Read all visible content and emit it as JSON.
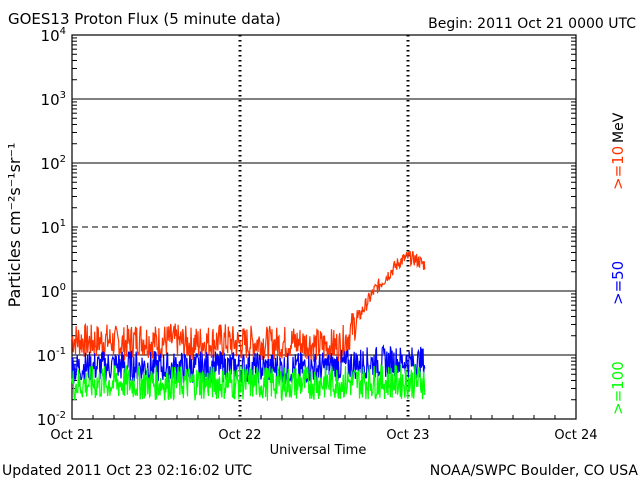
{
  "header": {
    "title": "GOES13 Proton Flux (5 minute data)",
    "begin": "Begin: 2011 Oct 21 0000 UTC"
  },
  "footer": {
    "updated": "Updated 2011 Oct 23 02:16:02 UTC",
    "credit": "NOAA/SWPC Boulder, CO USA"
  },
  "chart_data": {
    "type": "line",
    "title": "GOES13 Proton Flux (5 minute data)",
    "xlabel": "Universal Time",
    "ylabel": "Particles cm⁻²s⁻¹sr⁻¹",
    "yscale": "log",
    "ylim": [
      0.01,
      10000
    ],
    "xlim_days": [
      0,
      3
    ],
    "x_ticks": [
      {
        "day": 0,
        "label": "Oct 21"
      },
      {
        "day": 1,
        "label": "Oct 22"
      },
      {
        "day": 2,
        "label": "Oct 23"
      },
      {
        "day": 3,
        "label": "Oct 24"
      }
    ],
    "y_ticks": [
      {
        "exp": -2,
        "mant": "10",
        "sup": "-2"
      },
      {
        "exp": -1,
        "mant": "10",
        "sup": "-1"
      },
      {
        "exp": 0,
        "mant": "10",
        "sup": "0"
      },
      {
        "exp": 1,
        "mant": "10",
        "sup": "1"
      },
      {
        "exp": 2,
        "mant": "10",
        "sup": "2"
      },
      {
        "exp": 3,
        "mant": "10",
        "sup": "3"
      },
      {
        "exp": 4,
        "mant": "10",
        "sup": "4"
      }
    ],
    "threshold_line": {
      "value": 10,
      "style": "dashed"
    },
    "legend_unit": "MeV",
    "series": [
      {
        "name": ">=10",
        "color": "#ff3300",
        "points": [
          [
            0,
            0.17
          ],
          [
            0.1,
            0.15
          ],
          [
            0.2,
            0.16
          ],
          [
            0.3,
            0.14
          ],
          [
            0.4,
            0.17
          ],
          [
            0.5,
            0.15
          ],
          [
            0.6,
            0.16
          ],
          [
            0.7,
            0.14
          ],
          [
            0.8,
            0.15
          ],
          [
            0.9,
            0.16
          ],
          [
            1.0,
            0.14
          ],
          [
            1.1,
            0.15
          ],
          [
            1.2,
            0.14
          ],
          [
            1.3,
            0.15
          ],
          [
            1.4,
            0.14
          ],
          [
            1.5,
            0.13
          ],
          [
            1.6,
            0.13
          ],
          [
            1.65,
            0.2
          ],
          [
            1.7,
            0.35
          ],
          [
            1.75,
            0.6
          ],
          [
            1.8,
            1.0
          ],
          [
            1.85,
            1.4
          ],
          [
            1.9,
            2.0
          ],
          [
            1.95,
            2.8
          ],
          [
            2.0,
            3.3
          ],
          [
            2.05,
            3.0
          ],
          [
            2.1,
            2.5
          ]
        ]
      },
      {
        "name": ">=50",
        "color": "#0000ff",
        "points": [
          [
            0,
            0.06
          ],
          [
            0.3,
            0.065
          ],
          [
            0.6,
            0.06
          ],
          [
            0.9,
            0.062
          ],
          [
            1.2,
            0.058
          ],
          [
            1.5,
            0.06
          ],
          [
            1.7,
            0.07
          ],
          [
            1.9,
            0.075
          ],
          [
            2.1,
            0.072
          ]
        ]
      },
      {
        "name": ">=100",
        "color": "#00ff00",
        "points": [
          [
            0,
            0.033
          ],
          [
            0.3,
            0.035
          ],
          [
            0.6,
            0.034
          ],
          [
            0.9,
            0.035
          ],
          [
            1.2,
            0.034
          ],
          [
            1.5,
            0.035
          ],
          [
            1.8,
            0.036
          ],
          [
            2.1,
            0.036
          ]
        ]
      }
    ]
  }
}
